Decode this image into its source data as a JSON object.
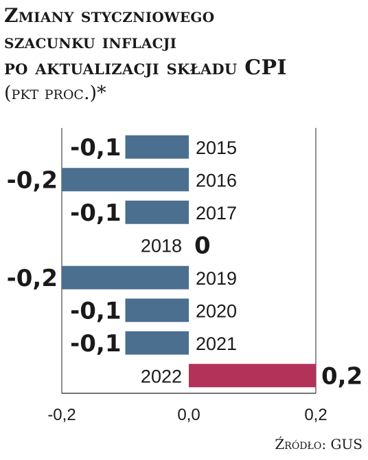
{
  "title_lines": [
    "Zmiany styczniowego",
    "szacunku inflacji",
    "po aktualizacji składu CPI"
  ],
  "subtitle": "(pkt proc.)*",
  "source": "Źródło: GUS",
  "colors": {
    "negative": "#4b6f8f",
    "positive": "#b2325a",
    "axis": "#222222",
    "grid": "#222222",
    "text": "#1a1a1a"
  },
  "chart_data": {
    "type": "bar",
    "orientation": "horizontal",
    "categories": [
      "2015",
      "2016",
      "2017",
      "2018",
      "2019",
      "2020",
      "2021",
      "2022"
    ],
    "values": [
      -0.1,
      -0.2,
      -0.1,
      0,
      -0.2,
      -0.1,
      -0.1,
      0.2
    ],
    "data_labels": [
      "-0,1",
      "-0,2",
      "-0,1",
      "0",
      "-0,2",
      "-0,1",
      "-0,1",
      "0,2"
    ],
    "xlim": [
      -0.2,
      0.2
    ],
    "xticks": [
      -0.2,
      0.0,
      0.2
    ],
    "xtick_labels": [
      "-0,2",
      "0,0",
      "0,2"
    ],
    "grid": false,
    "legend": "none"
  }
}
